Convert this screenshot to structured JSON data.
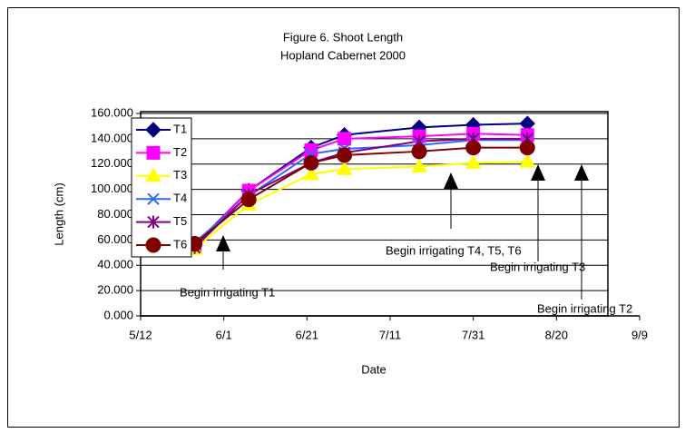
{
  "chart_data": {
    "type": "line",
    "title": "Figure 6. Shoot Length",
    "subtitle": "Hopland Cabernet 2000",
    "x_label": "Date",
    "y_label": "Length (cm)",
    "x": [
      "5/25",
      "6/7",
      "6/22",
      "6/30",
      "7/18",
      "7/31",
      "8/13"
    ],
    "xlim": [
      "5/12",
      "9/9"
    ],
    "xticks": [
      "5/12",
      "6/1",
      "6/21",
      "7/11",
      "7/31",
      "8/20",
      "9/9"
    ],
    "ylim": [
      0,
      160
    ],
    "yticks": [
      {
        "value": 0,
        "label": "0.000"
      },
      {
        "value": 20,
        "label": "20.000"
      },
      {
        "value": 40,
        "label": "40.000"
      },
      {
        "value": 60,
        "label": "60.000"
      },
      {
        "value": 80,
        "label": "80.000"
      },
      {
        "value": 100,
        "label": "100.000"
      },
      {
        "value": 120,
        "label": "120.000"
      },
      {
        "value": 140,
        "label": "140.000"
      },
      {
        "value": 160,
        "label": "160.000"
      }
    ],
    "grid": true,
    "series": [
      {
        "name": "T1",
        "color": "#000080",
        "marker": "diamond",
        "values": [
          56,
          99,
          133,
          143,
          149,
          151,
          152
        ]
      },
      {
        "name": "T2",
        "color": "#ff00ff",
        "marker": "square",
        "values": [
          55,
          99,
          131,
          140,
          142,
          144,
          143
        ]
      },
      {
        "name": "T3",
        "color": "#ffff00",
        "marker": "triangle",
        "values": [
          53,
          88,
          112,
          116,
          118,
          121,
          122
        ]
      },
      {
        "name": "T4",
        "color": "#3366ff",
        "marker": "x",
        "values": [
          58,
          95,
          128,
          132,
          135,
          139,
          139
        ]
      },
      {
        "name": "T5",
        "color": "#800080",
        "marker": "star",
        "values": [
          54,
          96,
          121,
          129,
          138,
          140,
          140
        ]
      },
      {
        "name": "T6",
        "color": "#800000",
        "marker": "circle",
        "values": [
          57,
          92,
          121,
          127,
          130,
          133,
          133
        ]
      }
    ],
    "annotations": [
      "Begin irrigating T1",
      "Begin irrigating T4, T5, T6",
      "Begin irrigating T3",
      "Begin irrigating T2"
    ]
  }
}
